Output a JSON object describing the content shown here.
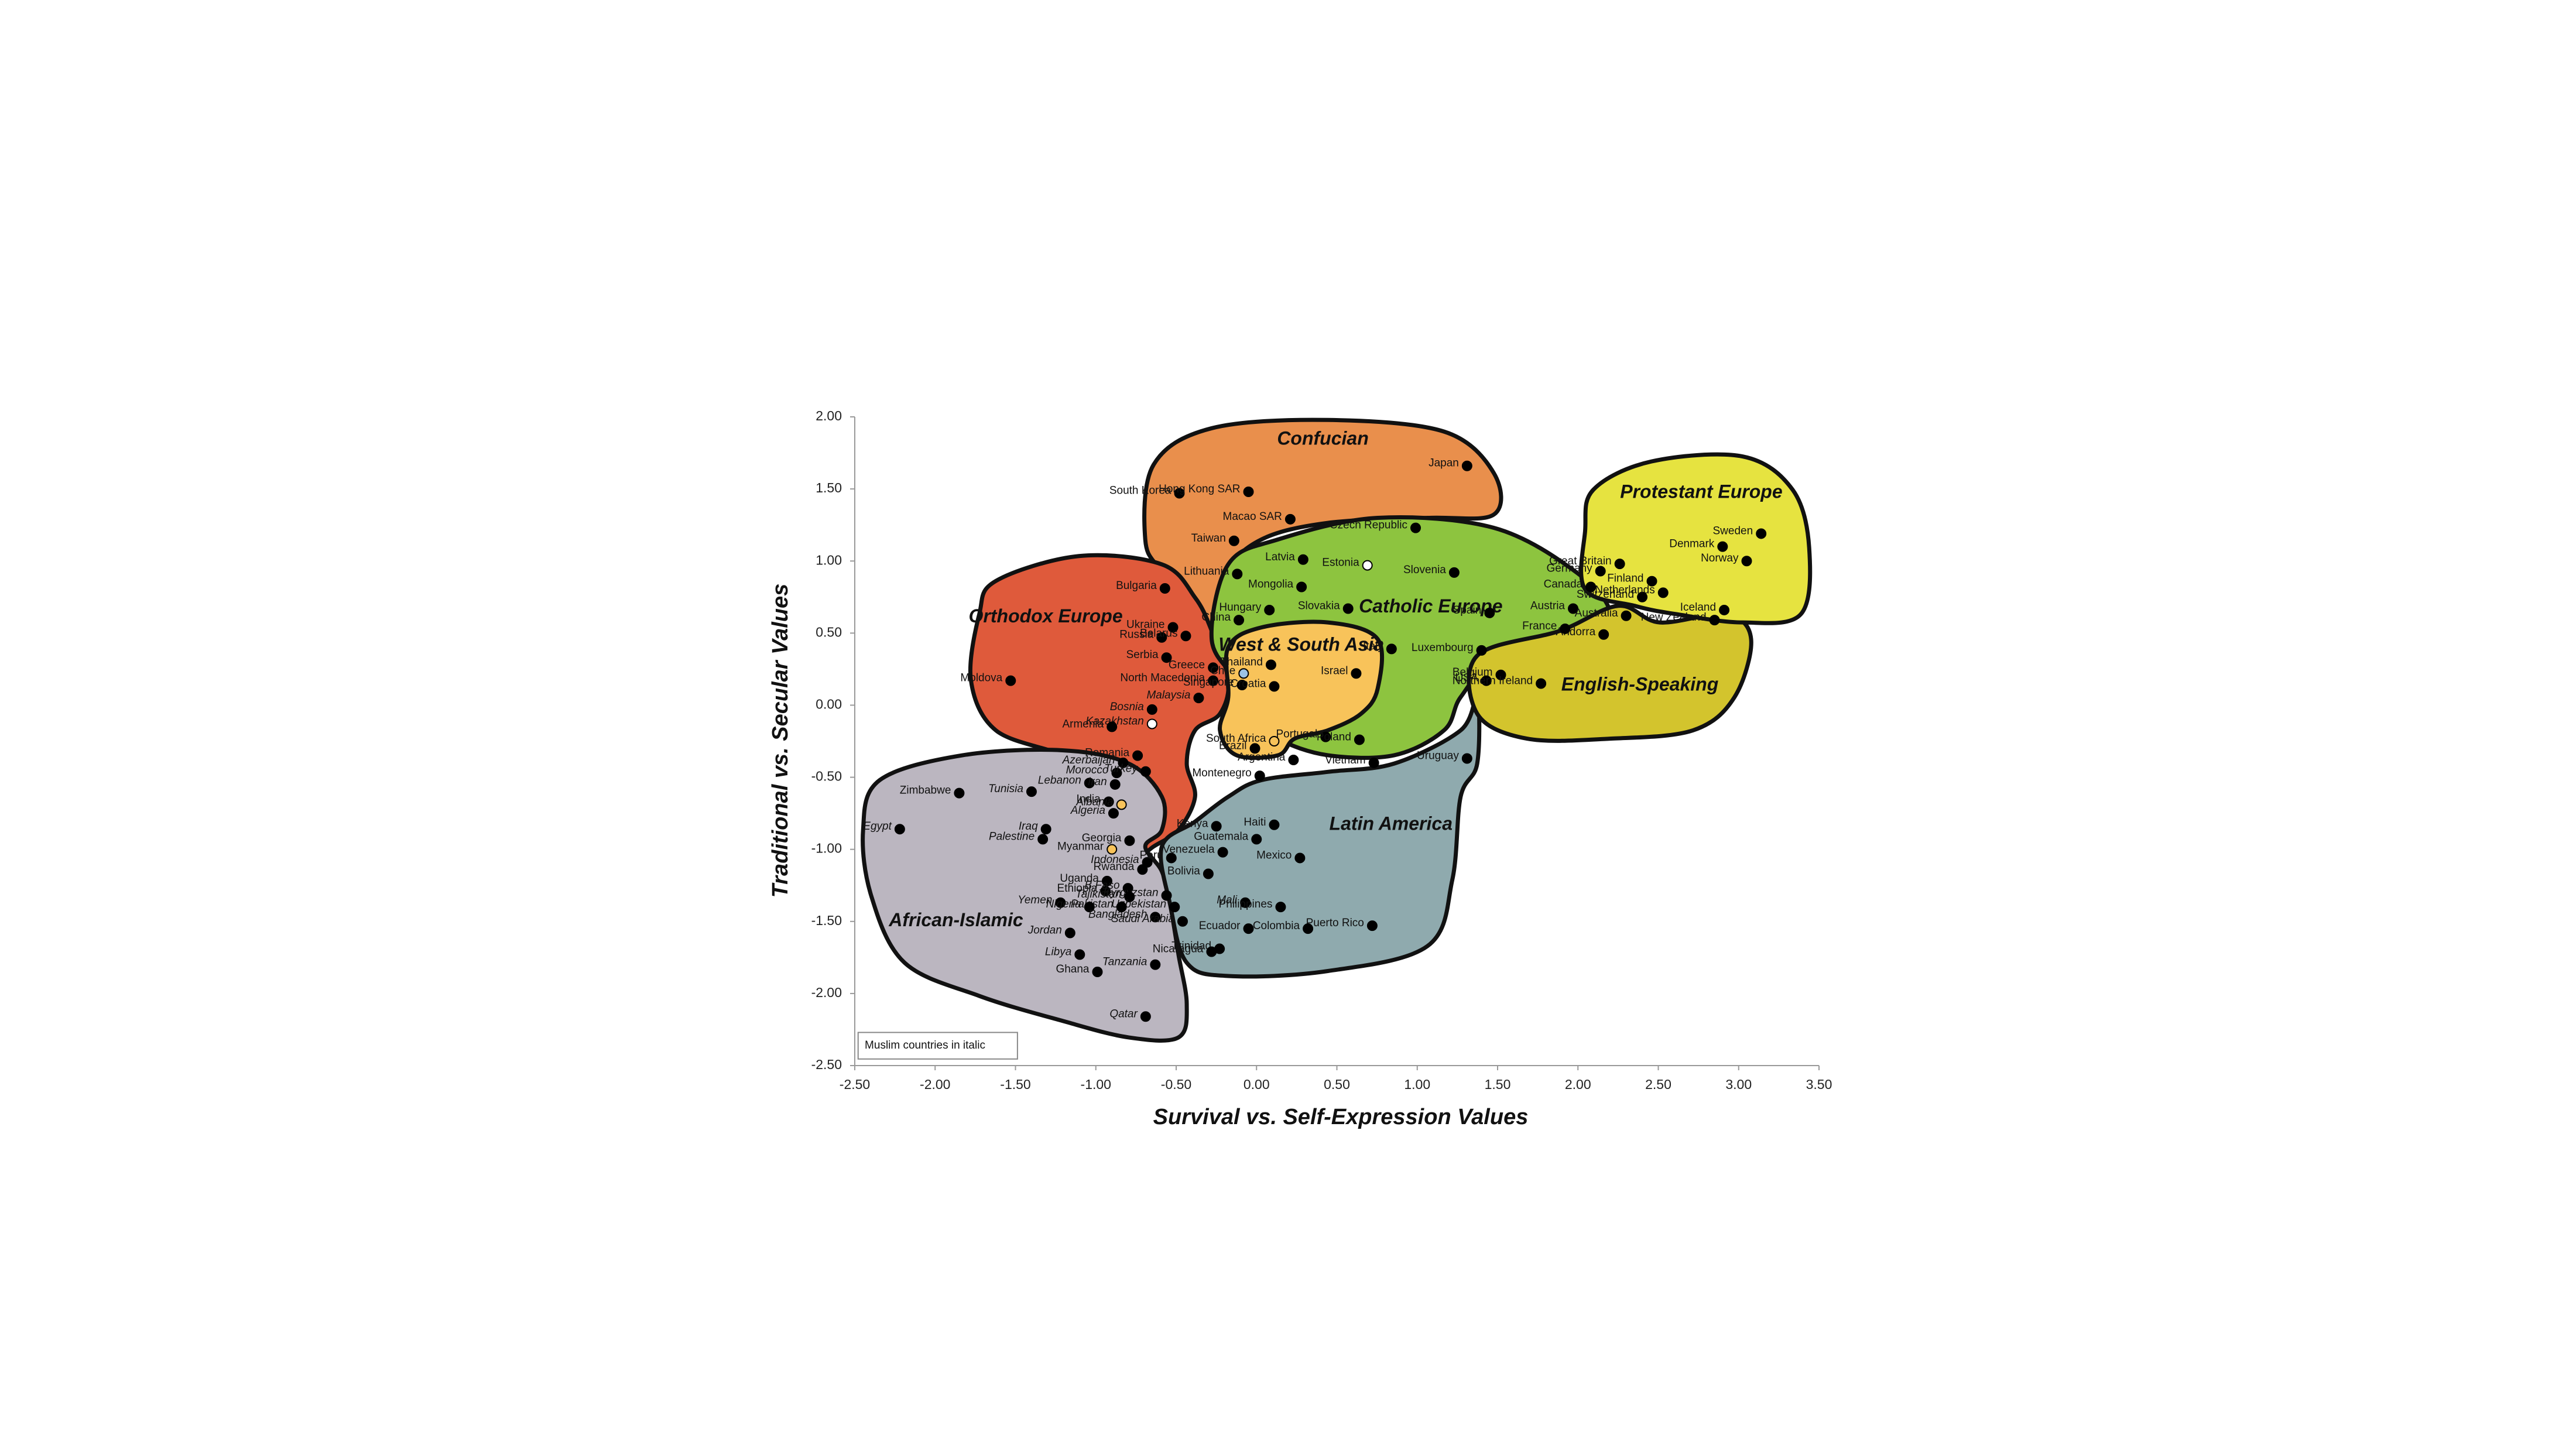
{
  "chart_data": {
    "type": "scatter",
    "xlabel": "Survival vs. Self-Expression Values",
    "ylabel": "Traditional vs. Secular Values",
    "note": "Muslim countries in italic",
    "xlim": [
      -2.5,
      3.5
    ],
    "ylim": [
      -2.5,
      2
    ],
    "xticks": [
      {
        "value": -2.5,
        "label": "-2.50"
      },
      {
        "value": -2,
        "label": "-2.00"
      },
      {
        "value": -1.5,
        "label": "-1.50"
      },
      {
        "value": -1,
        "label": "-1.00"
      },
      {
        "value": -0.5,
        "label": "-0.50"
      },
      {
        "value": 0,
        "label": "0.00"
      },
      {
        "value": 0.5,
        "label": "0.50"
      },
      {
        "value": 1,
        "label": "1.00"
      },
      {
        "value": 1.5,
        "label": "1.50"
      },
      {
        "value": 2,
        "label": "2.00"
      },
      {
        "value": 2.5,
        "label": "2.50"
      },
      {
        "value": 3,
        "label": "3.00"
      },
      {
        "value": 3.5,
        "label": "3.50"
      }
    ],
    "yticks": [
      {
        "value": -2.5,
        "label": "-2.50"
      },
      {
        "value": -2,
        "label": "-2.00"
      },
      {
        "value": -1.5,
        "label": "-1.50"
      },
      {
        "value": -1,
        "label": "-1.00"
      },
      {
        "value": -0.5,
        "label": "-0.50"
      },
      {
        "value": 0,
        "label": "0.00"
      },
      {
        "value": 0.5,
        "label": "0.50"
      },
      {
        "value": 1,
        "label": "1.00"
      },
      {
        "value": 1.5,
        "label": "1.50"
      },
      {
        "value": 2,
        "label": "2.00"
      }
    ],
    "regions": [
      {
        "name": "Confucian",
        "color": "#e98f4c"
      },
      {
        "name": "Orthodox Europe",
        "color": "#df5a3b"
      },
      {
        "name": "African-Islamic",
        "color": "#bbb6c0"
      },
      {
        "name": "Latin America",
        "color": "#8faaae"
      },
      {
        "name": "Catholic Europe",
        "color": "#8dc43f"
      },
      {
        "name": "West & South Asia",
        "color": "#f8c35a"
      },
      {
        "name": "English-Speaking",
        "color": "#d3c42d"
      },
      {
        "name": "Protestant Europe",
        "color": "#e6e340"
      }
    ],
    "points": [
      {
        "label": "Japan",
        "x": 1.31,
        "y": 1.66,
        "color": "#000000"
      },
      {
        "label": "South Korea",
        "x": -0.48,
        "y": 1.47,
        "color": "#000000"
      },
      {
        "label": "Hong Kong SAR",
        "x": -0.05,
        "y": 1.48,
        "color": "#000000"
      },
      {
        "label": "Macao SAR",
        "x": 0.21,
        "y": 1.29,
        "color": "#000000"
      },
      {
        "label": "Taiwan",
        "x": -0.14,
        "y": 1.14,
        "color": "#000000"
      },
      {
        "label": "Czech Republic",
        "x": 0.99,
        "y": 1.23,
        "color": "#000000"
      },
      {
        "label": "Lithuania",
        "x": -0.12,
        "y": 0.91,
        "color": "#000000"
      },
      {
        "label": "Latvia",
        "x": 0.29,
        "y": 1.01,
        "color": "#000000"
      },
      {
        "label": "Estonia",
        "x": 0.69,
        "y": 0.97,
        "color": "#ffffff"
      },
      {
        "label": "Slovenia",
        "x": 1.23,
        "y": 0.92,
        "color": "#000000"
      },
      {
        "label": "Bulgaria",
        "x": -0.57,
        "y": 0.81,
        "color": "#000000"
      },
      {
        "label": "Mongolia",
        "x": 0.28,
        "y": 0.82,
        "color": "#000000"
      },
      {
        "label": "Hungary",
        "x": 0.08,
        "y": 0.66,
        "color": "#000000"
      },
      {
        "label": "Slovakia",
        "x": 0.57,
        "y": 0.67,
        "color": "#000000"
      },
      {
        "label": "Spain",
        "x": 1.45,
        "y": 0.64,
        "color": "#000000"
      },
      {
        "label": "China",
        "x": -0.11,
        "y": 0.59,
        "color": "#000000"
      },
      {
        "label": "Ukraine",
        "x": -0.52,
        "y": 0.54,
        "color": "#000000"
      },
      {
        "label": "Russia",
        "x": -0.59,
        "y": 0.47,
        "color": "#000000"
      },
      {
        "label": "Belarus",
        "x": -0.44,
        "y": 0.48,
        "color": "#000000"
      },
      {
        "label": "Serbia",
        "x": -0.56,
        "y": 0.33,
        "color": "#000000"
      },
      {
        "label": "Greece",
        "x": -0.27,
        "y": 0.26,
        "color": "#000000"
      },
      {
        "label": "North Macedonia",
        "x": -0.27,
        "y": 0.17,
        "color": "#000000"
      },
      {
        "label": "Moldova",
        "x": -1.53,
        "y": 0.17,
        "color": "#000000"
      },
      {
        "label": "Italy",
        "x": 0.84,
        "y": 0.39,
        "color": "#000000"
      },
      {
        "label": "Luxembourg",
        "x": 1.4,
        "y": 0.38,
        "color": "#000000"
      },
      {
        "label": "Austria",
        "x": 1.97,
        "y": 0.67,
        "color": "#000000"
      },
      {
        "label": "Andorra",
        "x": 2.16,
        "y": 0.49,
        "color": "#000000"
      },
      {
        "label": "France",
        "x": 1.92,
        "y": 0.53,
        "color": "#000000"
      },
      {
        "label": "Germany",
        "x": 2.14,
        "y": 0.93,
        "color": "#000000"
      },
      {
        "label": "Great Britain",
        "x": 2.26,
        "y": 0.98,
        "color": "#000000"
      },
      {
        "label": "Canada",
        "x": 2.08,
        "y": 0.82,
        "color": "#000000"
      },
      {
        "label": "Switzerland",
        "x": 2.4,
        "y": 0.75,
        "color": "#000000"
      },
      {
        "label": "Netherlands",
        "x": 2.53,
        "y": 0.78,
        "color": "#000000"
      },
      {
        "label": "Finland",
        "x": 2.46,
        "y": 0.86,
        "color": "#000000"
      },
      {
        "label": "Denmark",
        "x": 2.9,
        "y": 1.1,
        "color": "#000000"
      },
      {
        "label": "Sweden",
        "x": 3.14,
        "y": 1.19,
        "color": "#000000"
      },
      {
        "label": "Norway",
        "x": 3.05,
        "y": 1.0,
        "color": "#000000"
      },
      {
        "label": "Iceland",
        "x": 2.91,
        "y": 0.66,
        "color": "#000000"
      },
      {
        "label": "Australia",
        "x": 2.3,
        "y": 0.62,
        "color": "#000000"
      },
      {
        "label": "New Zealand",
        "x": 2.85,
        "y": 0.59,
        "color": "#000000"
      },
      {
        "label": "USA",
        "x": 1.43,
        "y": 0.17,
        "color": "#000000"
      },
      {
        "label": "Belgium",
        "x": 1.52,
        "y": 0.21,
        "color": "#000000"
      },
      {
        "label": "Northern Ireland",
        "x": 1.77,
        "y": 0.15,
        "color": "#000000"
      },
      {
        "label": "Thailand",
        "x": 0.09,
        "y": 0.28,
        "color": "#000000"
      },
      {
        "label": "Chile",
        "x": -0.08,
        "y": 0.22,
        "color": "#9cc3e6"
      },
      {
        "label": "Singapore",
        "x": -0.09,
        "y": 0.14,
        "color": "#000000"
      },
      {
        "label": "Croatia",
        "x": 0.11,
        "y": 0.13,
        "color": "#000000"
      },
      {
        "label": "Israel",
        "x": 0.62,
        "y": 0.22,
        "color": "#000000"
      },
      {
        "label": "Bosnia",
        "x": -0.65,
        "y": -0.03,
        "color": "#000000",
        "italic": true
      },
      {
        "label": "Malaysia",
        "x": -0.36,
        "y": 0.05,
        "color": "#000000",
        "italic": true
      },
      {
        "label": "Kazakhstan",
        "x": -0.65,
        "y": -0.13,
        "color": "#ffffff",
        "italic": true
      },
      {
        "label": "Armenia",
        "x": -0.9,
        "y": -0.15,
        "color": "#000000"
      },
      {
        "label": "South Africa",
        "x": 0.11,
        "y": -0.25,
        "color": "#f8c35a"
      },
      {
        "label": "Portugal",
        "x": 0.43,
        "y": -0.22,
        "color": "#000000"
      },
      {
        "label": "Poland",
        "x": 0.64,
        "y": -0.24,
        "color": "#000000"
      },
      {
        "label": "Brazil",
        "x": -0.01,
        "y": -0.3,
        "color": "#000000"
      },
      {
        "label": "Romania",
        "x": -0.74,
        "y": -0.35,
        "color": "#000000"
      },
      {
        "label": "Azerbaijan",
        "x": -0.83,
        "y": -0.4,
        "color": "#000000",
        "italic": true
      },
      {
        "label": "Vietnam",
        "x": 0.73,
        "y": -0.4,
        "color": "#000000"
      },
      {
        "label": "Argentina",
        "x": 0.23,
        "y": -0.38,
        "color": "#000000"
      },
      {
        "label": "Uruguay",
        "x": 1.31,
        "y": -0.37,
        "color": "#000000"
      },
      {
        "label": "Morocco",
        "x": -0.87,
        "y": -0.47,
        "color": "#000000",
        "italic": true
      },
      {
        "label": "Turkey",
        "x": -0.69,
        "y": -0.46,
        "color": "#000000",
        "italic": true
      },
      {
        "label": "Montenegro",
        "x": 0.02,
        "y": -0.49,
        "color": "#000000"
      },
      {
        "label": "Lebanon",
        "x": -1.04,
        "y": -0.54,
        "color": "#000000",
        "italic": true
      },
      {
        "label": "Iran",
        "x": -0.88,
        "y": -0.55,
        "color": "#000000",
        "italic": true
      },
      {
        "label": "Tunisia",
        "x": -1.4,
        "y": -0.6,
        "color": "#000000",
        "italic": true
      },
      {
        "label": "Zimbabwe",
        "x": -1.85,
        "y": -0.61,
        "color": "#000000"
      },
      {
        "label": "India",
        "x": -0.92,
        "y": -0.67,
        "color": "#000000"
      },
      {
        "label": "Albania",
        "x": -0.84,
        "y": -0.69,
        "color": "#f8c35a",
        "italic": true
      },
      {
        "label": "Algeria",
        "x": -0.89,
        "y": -0.75,
        "color": "#000000",
        "italic": true
      },
      {
        "label": "Haiti",
        "x": 0.11,
        "y": -0.83,
        "color": "#000000"
      },
      {
        "label": "Kenya",
        "x": -0.25,
        "y": -0.84,
        "color": "#000000"
      },
      {
        "label": "Iraq",
        "x": -1.31,
        "y": -0.86,
        "color": "#000000",
        "italic": true
      },
      {
        "label": "Egypt",
        "x": -2.22,
        "y": -0.86,
        "color": "#000000",
        "italic": true
      },
      {
        "label": "Palestine",
        "x": -1.33,
        "y": -0.93,
        "color": "#000000",
        "italic": true
      },
      {
        "label": "Guatemala",
        "x": 0.0,
        "y": -0.93,
        "color": "#000000"
      },
      {
        "label": "Georgia",
        "x": -0.79,
        "y": -0.94,
        "color": "#000000"
      },
      {
        "label": "Myanmar",
        "x": -0.9,
        "y": -1.0,
        "color": "#f8c35a"
      },
      {
        "label": "Venezuela",
        "x": -0.21,
        "y": -1.02,
        "color": "#000000"
      },
      {
        "label": "Mexico",
        "x": 0.27,
        "y": -1.06,
        "color": "#000000"
      },
      {
        "label": "Indonesia",
        "x": -0.68,
        "y": -1.09,
        "color": "#000000",
        "italic": true
      },
      {
        "label": "Peru",
        "x": -0.53,
        "y": -1.06,
        "color": "#000000"
      },
      {
        "label": "Rwanda",
        "x": -0.71,
        "y": -1.14,
        "color": "#000000"
      },
      {
        "label": "Bolivia",
        "x": -0.3,
        "y": -1.17,
        "color": "#000000"
      },
      {
        "label": "Uganda",
        "x": -0.93,
        "y": -1.22,
        "color": "#000000"
      },
      {
        "label": "Ethiopia",
        "x": -0.94,
        "y": -1.29,
        "color": "#000000"
      },
      {
        "label": "B.Faso",
        "x": -0.8,
        "y": -1.27,
        "color": "#000000",
        "italic": true
      },
      {
        "label": "Kyrgyzstan",
        "x": -0.56,
        "y": -1.32,
        "color": "#000000",
        "italic": true
      },
      {
        "label": "Tajikistan",
        "x": -0.79,
        "y": -1.33,
        "color": "#000000",
        "italic": true
      },
      {
        "label": "Yemen",
        "x": -1.22,
        "y": -1.37,
        "color": "#000000",
        "italic": true
      },
      {
        "label": "Uzbekistan",
        "x": -0.51,
        "y": -1.4,
        "color": "#000000",
        "italic": true
      },
      {
        "label": "Mali",
        "x": -0.07,
        "y": -1.37,
        "color": "#000000",
        "italic": true
      },
      {
        "label": "Pakistan",
        "x": -0.84,
        "y": -1.4,
        "color": "#000000",
        "italic": true
      },
      {
        "label": "Philippines",
        "x": 0.15,
        "y": -1.4,
        "color": "#000000"
      },
      {
        "label": "Nigeria",
        "x": -1.04,
        "y": -1.4,
        "color": "#000000",
        "italic": true
      },
      {
        "label": "Puerto Rico",
        "x": 0.72,
        "y": -1.53,
        "color": "#000000"
      },
      {
        "label": "Bangladesh",
        "x": -0.63,
        "y": -1.47,
        "color": "#000000",
        "italic": true
      },
      {
        "label": "Saudi Arabia",
        "x": -0.46,
        "y": -1.5,
        "color": "#000000",
        "italic": true
      },
      {
        "label": "Colombia",
        "x": 0.32,
        "y": -1.55,
        "color": "#000000"
      },
      {
        "label": "Ecuador",
        "x": -0.05,
        "y": -1.55,
        "color": "#000000"
      },
      {
        "label": "Jordan",
        "x": -1.16,
        "y": -1.58,
        "color": "#000000",
        "italic": true
      },
      {
        "label": "Libya",
        "x": -1.1,
        "y": -1.73,
        "color": "#000000",
        "italic": true
      },
      {
        "label": "Trinidad",
        "x": -0.23,
        "y": -1.69,
        "color": "#000000"
      },
      {
        "label": "Nicaragua",
        "x": -0.28,
        "y": -1.71,
        "color": "#000000"
      },
      {
        "label": "Ghana",
        "x": -0.99,
        "y": -1.85,
        "color": "#000000"
      },
      {
        "label": "Tanzania",
        "x": -0.63,
        "y": -1.8,
        "color": "#000000",
        "italic": true
      },
      {
        "label": "Qatar",
        "x": -0.69,
        "y": -2.16,
        "color": "#000000",
        "italic": true
      }
    ]
  }
}
